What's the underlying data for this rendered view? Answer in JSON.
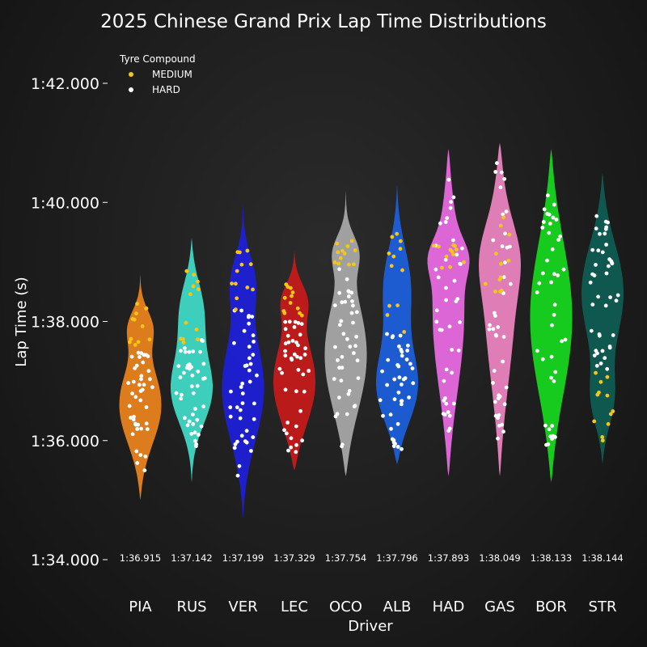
{
  "chart_data": {
    "type": "violin",
    "title": "2025 Chinese Grand Prix Lap Time Distributions",
    "xlabel": "Driver",
    "ylabel": "Lap Time (s)",
    "ylim": [
      94.0,
      102.6
    ],
    "y_ticks": [
      {
        "value": 94,
        "label": "1:34.000"
      },
      {
        "value": 96,
        "label": "1:36.000"
      },
      {
        "value": 98,
        "label": "1:38.000"
      },
      {
        "value": 100,
        "label": "1:40.000"
      },
      {
        "value": 102,
        "label": "1:42.000"
      }
    ],
    "legend": {
      "title": "Tyre Compound",
      "position": "top-left",
      "entries": [
        {
          "label": "MEDIUM",
          "color": "#f5c518"
        },
        {
          "label": "HARD",
          "color": "#ffffff"
        }
      ]
    },
    "drivers": [
      {
        "name": "PIA",
        "color": "#e8821e",
        "median": "1:36.915",
        "range": [
          95.0,
          98.8
        ],
        "medium": [
          97.6,
          98.3
        ],
        "hard": [
          95.5,
          97.6
        ]
      },
      {
        "name": "RUS",
        "color": "#3fd9c4",
        "median": "1:37.142",
        "range": [
          95.3,
          99.4
        ],
        "medium": [
          97.6,
          98.9
        ],
        "hard": [
          95.9,
          97.7
        ]
      },
      {
        "name": "VER",
        "color": "#1f20d6",
        "median": "1:37.199",
        "range": [
          94.7,
          100.0
        ],
        "medium": [
          98.2,
          99.3
        ],
        "hard": [
          95.4,
          98.2
        ]
      },
      {
        "name": "LEC",
        "color": "#c41a1a",
        "median": "1:37.329",
        "range": [
          95.5,
          99.2
        ],
        "medium": [
          98.1,
          98.7
        ],
        "hard": [
          95.7,
          98.1
        ]
      },
      {
        "name": "OCO",
        "color": "#a6a6a6",
        "median": "1:37.754",
        "range": [
          95.4,
          100.2
        ],
        "medium": [
          98.9,
          99.5
        ],
        "hard": [
          95.8,
          98.9
        ]
      },
      {
        "name": "ALB",
        "color": "#1c5fd9",
        "median": "1:37.796",
        "range": [
          95.6,
          100.3
        ],
        "medium": [
          97.8,
          99.5
        ],
        "hard": [
          95.8,
          97.8
        ]
      },
      {
        "name": "HAD",
        "color": "#e76ae0",
        "median": "1:37.893",
        "range": [
          95.4,
          100.9
        ],
        "medium": [
          98.9,
          99.3
        ],
        "hard": [
          95.9,
          100.4
        ]
      },
      {
        "name": "GAS",
        "color": "#ea83bf",
        "median": "1:38.049",
        "range": [
          95.4,
          101.0
        ],
        "medium": [
          98.5,
          99.8
        ],
        "hard": [
          96.0,
          100.8
        ]
      },
      {
        "name": "BOR",
        "color": "#17d41f",
        "median": "1:38.133",
        "range": [
          95.3,
          100.9
        ],
        "medium": [],
        "hard": [
          95.9,
          100.2
        ]
      },
      {
        "name": "STR",
        "color": "#0f5c52",
        "median": "1:38.144",
        "range": [
          95.6,
          100.5
        ],
        "medium": [
          96.0,
          97.2
        ],
        "hard": [
          97.2,
          99.9
        ]
      }
    ]
  }
}
